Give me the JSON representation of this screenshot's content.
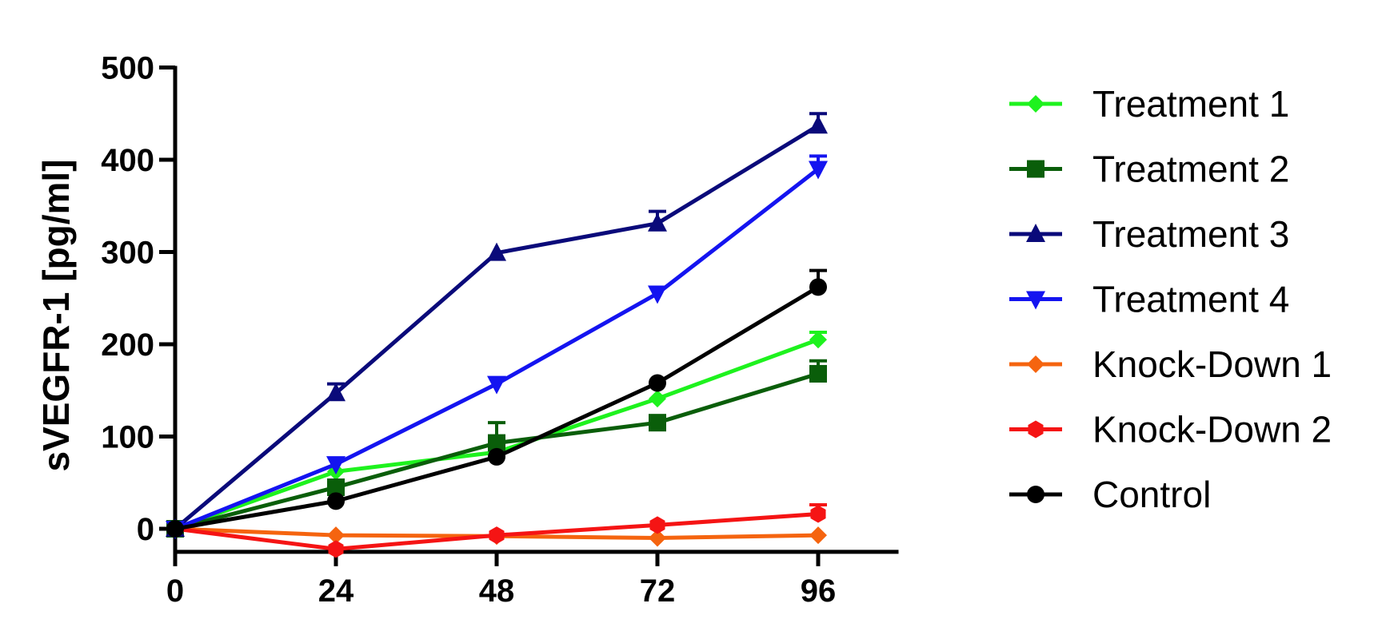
{
  "chart_data": {
    "type": "line",
    "title": "",
    "xlabel": "",
    "ylabel": "sVEGFR-1 [pg/ml]",
    "x": [
      0,
      24,
      48,
      72,
      96
    ],
    "xlim": [
      0,
      108
    ],
    "ylim": [
      -25,
      500
    ],
    "xticks": [
      "0",
      "24",
      "48",
      "72",
      "96"
    ],
    "yticks": [
      "0",
      "100",
      "200",
      "300",
      "400",
      "500"
    ],
    "grid": false,
    "legend_position": "right",
    "series": [
      {
        "name": "Treatment 1",
        "color": "#1ef21e",
        "marker": "diamond",
        "values": [
          0,
          62,
          83,
          141,
          205
        ],
        "error": [
          0,
          0,
          0,
          0,
          8
        ]
      },
      {
        "name": "Treatment 2",
        "color": "#0a5e0a",
        "marker": "square",
        "values": [
          0,
          45,
          93,
          115,
          168
        ],
        "error": [
          0,
          0,
          22,
          0,
          14
        ]
      },
      {
        "name": "Treatment 3",
        "color": "#0a0a7a",
        "marker": "triangle-up",
        "values": [
          0,
          147,
          299,
          331,
          437
        ],
        "error": [
          0,
          10,
          0,
          13,
          13
        ]
      },
      {
        "name": "Treatment 4",
        "color": "#1414f0",
        "marker": "triangle-down",
        "values": [
          0,
          70,
          157,
          255,
          390
        ],
        "error": [
          0,
          0,
          0,
          0,
          14
        ]
      },
      {
        "name": "Knock-Down 1",
        "color": "#f5640f",
        "marker": "diamond",
        "values": [
          0,
          -7,
          -8,
          -10,
          -7
        ],
        "error": [
          0,
          0,
          0,
          0,
          0
        ]
      },
      {
        "name": "Knock-Down 2",
        "color": "#f51414",
        "marker": "hexagon",
        "values": [
          0,
          -22,
          -7,
          4,
          16
        ],
        "error": [
          0,
          0,
          0,
          0,
          10
        ]
      },
      {
        "name": "Control",
        "color": "#000000",
        "marker": "circle",
        "values": [
          0,
          30,
          78,
          158,
          262
        ],
        "error": [
          0,
          0,
          0,
          0,
          18
        ]
      }
    ]
  }
}
